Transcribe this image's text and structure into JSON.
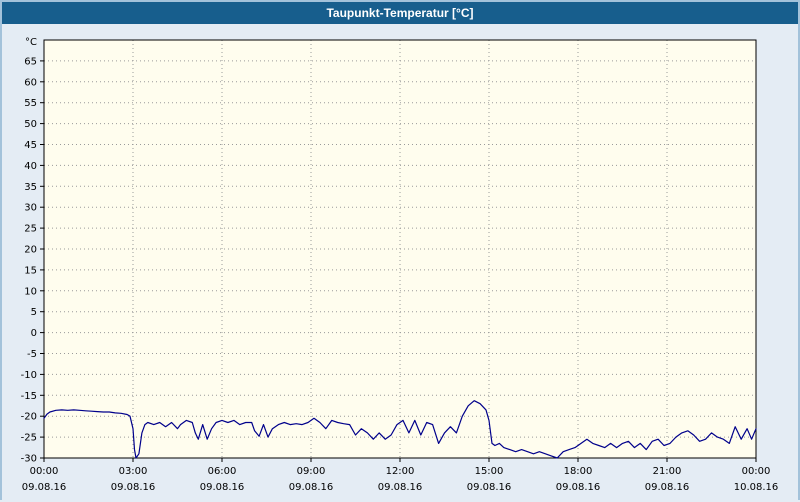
{
  "title": "Taupunkt-Temperatur [°C]",
  "chart_data": {
    "type": "line",
    "title": "Taupunkt-Temperatur [°C]",
    "xlabel": "",
    "ylabel": "°C",
    "xlim": [
      0,
      24
    ],
    "ylim": [
      -30,
      70
    ],
    "grid": "dashed",
    "legend": "none",
    "yticks": [
      65,
      60,
      55,
      50,
      45,
      40,
      35,
      30,
      25,
      20,
      15,
      10,
      5,
      0,
      -5,
      -10,
      -15,
      -20,
      -25,
      -30
    ],
    "xticks": [
      {
        "hour": 0,
        "time": "00:00",
        "date": "09.08.16"
      },
      {
        "hour": 3,
        "time": "03:00",
        "date": "09.08.16"
      },
      {
        "hour": 6,
        "time": "06:00",
        "date": "09.08.16"
      },
      {
        "hour": 9,
        "time": "09:00",
        "date": "09.08.16"
      },
      {
        "hour": 12,
        "time": "12:00",
        "date": "09.08.16"
      },
      {
        "hour": 15,
        "time": "15:00",
        "date": "09.08.16"
      },
      {
        "hour": 18,
        "time": "18:00",
        "date": "09.08.16"
      },
      {
        "hour": 21,
        "time": "21:00",
        "date": "09.08.16"
      },
      {
        "hour": 24,
        "time": "00:00",
        "date": "10.08.16"
      }
    ],
    "colors": {
      "plot_bg": "#fffdee",
      "grid": "#9a9a9a",
      "axis": "#000000",
      "titlebar_bg": "#175e8d",
      "titlebar_text": "#ffffff",
      "frame_bg": "#e4ecf4"
    },
    "series": [
      {
        "name": "Taupunkt-Temperatur",
        "color": "#00008b",
        "points": [
          [
            0.0,
            -20.5
          ],
          [
            0.1,
            -19.5
          ],
          [
            0.2,
            -19.0
          ],
          [
            0.4,
            -18.6
          ],
          [
            0.6,
            -18.5
          ],
          [
            0.8,
            -18.6
          ],
          [
            1.0,
            -18.5
          ],
          [
            1.2,
            -18.6
          ],
          [
            1.4,
            -18.7
          ],
          [
            1.6,
            -18.8
          ],
          [
            1.8,
            -18.9
          ],
          [
            2.0,
            -19.0
          ],
          [
            2.2,
            -19.0
          ],
          [
            2.4,
            -19.2
          ],
          [
            2.6,
            -19.3
          ],
          [
            2.8,
            -19.6
          ],
          [
            2.9,
            -20.0
          ],
          [
            3.0,
            -23.0
          ],
          [
            3.05,
            -28.0
          ],
          [
            3.1,
            -30.0
          ],
          [
            3.2,
            -29.0
          ],
          [
            3.3,
            -24.0
          ],
          [
            3.4,
            -22.0
          ],
          [
            3.5,
            -21.5
          ],
          [
            3.7,
            -22.0
          ],
          [
            3.9,
            -21.5
          ],
          [
            4.1,
            -22.5
          ],
          [
            4.3,
            -21.5
          ],
          [
            4.5,
            -23.0
          ],
          [
            4.6,
            -22.0
          ],
          [
            4.8,
            -21.0
          ],
          [
            5.0,
            -21.5
          ],
          [
            5.1,
            -24.0
          ],
          [
            5.2,
            -25.5
          ],
          [
            5.35,
            -22.0
          ],
          [
            5.5,
            -25.5
          ],
          [
            5.65,
            -23.0
          ],
          [
            5.8,
            -21.5
          ],
          [
            6.0,
            -21.0
          ],
          [
            6.2,
            -21.5
          ],
          [
            6.4,
            -21.0
          ],
          [
            6.6,
            -22.0
          ],
          [
            6.8,
            -21.5
          ],
          [
            7.0,
            -21.5
          ],
          [
            7.1,
            -23.5
          ],
          [
            7.25,
            -24.8
          ],
          [
            7.4,
            -22.0
          ],
          [
            7.55,
            -25.0
          ],
          [
            7.7,
            -23.0
          ],
          [
            7.9,
            -22.0
          ],
          [
            8.1,
            -21.5
          ],
          [
            8.3,
            -22.0
          ],
          [
            8.5,
            -21.8
          ],
          [
            8.7,
            -22.0
          ],
          [
            8.9,
            -21.5
          ],
          [
            9.1,
            -20.5
          ],
          [
            9.3,
            -21.5
          ],
          [
            9.5,
            -23.0
          ],
          [
            9.7,
            -21.0
          ],
          [
            9.9,
            -21.5
          ],
          [
            10.1,
            -21.8
          ],
          [
            10.3,
            -22.0
          ],
          [
            10.5,
            -24.5
          ],
          [
            10.7,
            -23.0
          ],
          [
            10.9,
            -24.0
          ],
          [
            11.1,
            -25.5
          ],
          [
            11.3,
            -24.0
          ],
          [
            11.5,
            -25.5
          ],
          [
            11.7,
            -24.5
          ],
          [
            11.9,
            -22.0
          ],
          [
            12.1,
            -21.0
          ],
          [
            12.3,
            -24.0
          ],
          [
            12.5,
            -21.0
          ],
          [
            12.7,
            -24.5
          ],
          [
            12.9,
            -21.5
          ],
          [
            13.1,
            -22.0
          ],
          [
            13.3,
            -26.5
          ],
          [
            13.5,
            -24.0
          ],
          [
            13.7,
            -22.5
          ],
          [
            13.9,
            -24.0
          ],
          [
            14.1,
            -20.0
          ],
          [
            14.3,
            -17.5
          ],
          [
            14.5,
            -16.3
          ],
          [
            14.7,
            -17.0
          ],
          [
            14.9,
            -18.5
          ],
          [
            15.0,
            -21.0
          ],
          [
            15.1,
            -26.5
          ],
          [
            15.2,
            -27.0
          ],
          [
            15.35,
            -26.5
          ],
          [
            15.5,
            -27.5
          ],
          [
            15.7,
            -28.0
          ],
          [
            15.9,
            -28.5
          ],
          [
            16.1,
            -28.0
          ],
          [
            16.3,
            -28.5
          ],
          [
            16.5,
            -29.0
          ],
          [
            16.7,
            -28.5
          ],
          [
            16.9,
            -29.0
          ],
          [
            17.1,
            -29.5
          ],
          [
            17.3,
            -30.0
          ],
          [
            17.5,
            -28.5
          ],
          [
            17.7,
            -28.0
          ],
          [
            17.9,
            -27.5
          ],
          [
            18.1,
            -26.5
          ],
          [
            18.3,
            -25.5
          ],
          [
            18.5,
            -26.5
          ],
          [
            18.7,
            -27.0
          ],
          [
            18.9,
            -27.5
          ],
          [
            19.1,
            -26.5
          ],
          [
            19.3,
            -27.5
          ],
          [
            19.5,
            -26.5
          ],
          [
            19.7,
            -26.0
          ],
          [
            19.9,
            -27.5
          ],
          [
            20.1,
            -26.5
          ],
          [
            20.3,
            -28.0
          ],
          [
            20.5,
            -26.0
          ],
          [
            20.7,
            -25.5
          ],
          [
            20.9,
            -27.0
          ],
          [
            21.1,
            -26.5
          ],
          [
            21.3,
            -25.0
          ],
          [
            21.5,
            -24.0
          ],
          [
            21.7,
            -23.5
          ],
          [
            21.9,
            -24.5
          ],
          [
            22.1,
            -26.0
          ],
          [
            22.3,
            -25.5
          ],
          [
            22.5,
            -24.0
          ],
          [
            22.7,
            -25.0
          ],
          [
            22.9,
            -25.5
          ],
          [
            23.1,
            -26.5
          ],
          [
            23.3,
            -22.5
          ],
          [
            23.5,
            -25.5
          ],
          [
            23.7,
            -23.0
          ],
          [
            23.85,
            -25.5
          ],
          [
            24.0,
            -23.0
          ]
        ]
      }
    ]
  }
}
